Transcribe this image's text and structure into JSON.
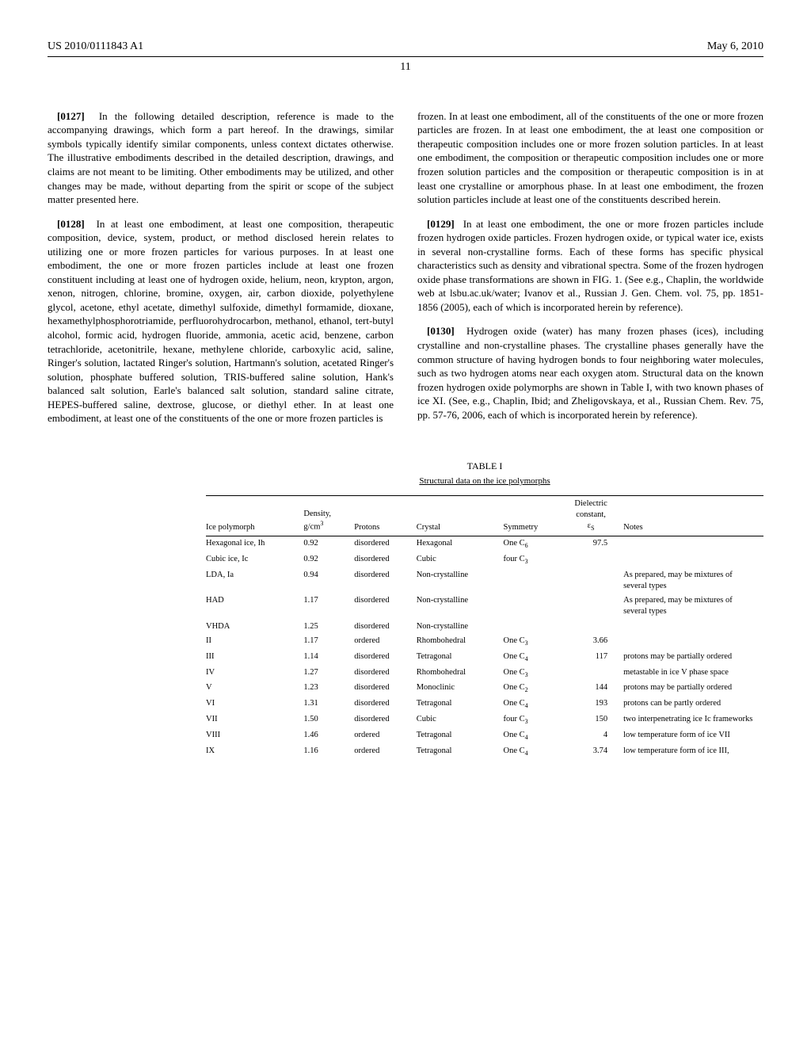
{
  "header": {
    "pub_number": "US 2010/0111843 A1",
    "pub_date": "May 6, 2010",
    "page": "11"
  },
  "left_col": {
    "p127_num": "[0127]",
    "p127": "In the following detailed description, reference is made to the accompanying drawings, which form a part hereof. In the drawings, similar symbols typically identify similar components, unless context dictates otherwise. The illustrative embodiments described in the detailed description, drawings, and claims are not meant to be limiting. Other embodiments may be utilized, and other changes may be made, without departing from the spirit or scope of the subject matter presented here.",
    "p128_num": "[0128]",
    "p128": "In at least one embodiment, at least one composition, therapeutic composition, device, system, product, or method disclosed herein relates to utilizing one or more frozen particles for various purposes. In at least one embodiment, the one or more frozen particles include at least one frozen constituent including at least one of hydrogen oxide, helium, neon, krypton, argon, xenon, nitrogen, chlorine, bromine, oxygen, air, carbon dioxide, polyethylene glycol, acetone, ethyl acetate, dimethyl sulfoxide, dimethyl formamide, dioxane, hexamethylphosphorotriamide, perfluorohydrocarbon, methanol, ethanol, tert-butyl alcohol, formic acid, hydrogen fluoride, ammonia, acetic acid, benzene, carbon tetrachloride, acetonitrile, hexane, methylene chloride, carboxylic acid, saline, Ringer's solution, lactated Ringer's solution, Hartmann's solution, acetated Ringer's solution, phosphate buffered solution, TRIS-buffered saline solution, Hank's balanced salt solution, Earle's balanced salt solution, standard saline citrate, HEPES-buffered saline, dextrose, glucose, or diethyl ether. In at least one embodiment, at least one of the constituents of the one or more frozen particles is"
  },
  "right_col": {
    "p128_cont": "frozen. In at least one embodiment, all of the constituents of the one or more frozen particles are frozen. In at least one embodiment, the at least one composition or therapeutic composition includes one or more frozen solution particles. In at least one embodiment, the composition or therapeutic composition includes one or more frozen solution particles and the composition or therapeutic composition is in at least one crystalline or amorphous phase. In at least one embodiment, the frozen solution particles include at least one of the constituents described herein.",
    "p129_num": "[0129]",
    "p129": "In at least one embodiment, the one or more frozen particles include frozen hydrogen oxide particles. Frozen hydrogen oxide, or typical water ice, exists in several non-crystalline forms. Each of these forms has specific physical characteristics such as density and vibrational spectra. Some of the frozen hydrogen oxide phase transformations are shown in FIG. 1. (See e.g., Chaplin, the worldwide web at lsbu.ac.uk/water; Ivanov et al., Russian J. Gen. Chem. vol. 75, pp. 1851-1856 (2005), each of which is incorporated herein by reference).",
    "p130_num": "[0130]",
    "p130": "Hydrogen oxide (water) has many frozen phases (ices), including crystalline and non-crystalline phases. The crystalline phases generally have the common structure of having hydrogen bonds to four neighboring water molecules, such as two hydrogen atoms near each oxygen atom. Structural data on the known frozen hydrogen oxide polymorphs are shown in Table I, with two known phases of ice XI. (See, e.g., Chaplin, Ibid; and Zheligovskaya, et al., Russian Chem. Rev. 75, pp. 57-76, 2006, each of which is incorporated herein by reference)."
  },
  "table": {
    "label": "TABLE I",
    "caption": "Structural data on the ice polymorphs",
    "headers": {
      "c1": "Ice polymorph",
      "c2_line1": "Density,",
      "c2_line2": "g/cm",
      "c3": "Protons",
      "c4": "Crystal",
      "c5": "Symmetry",
      "c6_line1": "Dielectric",
      "c6_line2": "constant,",
      "c6_line3": "ε",
      "c7": "Notes"
    },
    "rows": [
      {
        "poly": "Hexagonal ice, Ih",
        "dens": "0.92",
        "prot": "disordered",
        "cryst": "Hexagonal",
        "sym_pre": "One C",
        "sym_sub": "6",
        "diel": "97.5",
        "notes": ""
      },
      {
        "poly": "Cubic ice, Ic",
        "dens": "0.92",
        "prot": "disordered",
        "cryst": "Cubic",
        "sym_pre": "four C",
        "sym_sub": "3",
        "diel": "",
        "notes": ""
      },
      {
        "poly": "LDA, Ia",
        "dens": "0.94",
        "prot": "disordered",
        "cryst": "Non-crystalline",
        "sym_pre": "",
        "sym_sub": "",
        "diel": "",
        "notes": "As prepared, may be mixtures of several types"
      },
      {
        "poly": "HAD",
        "dens": "1.17",
        "prot": "disordered",
        "cryst": "Non-crystalline",
        "sym_pre": "",
        "sym_sub": "",
        "diel": "",
        "notes": "As prepared, may be mixtures of several types"
      },
      {
        "poly": "VHDA",
        "dens": "1.25",
        "prot": "disordered",
        "cryst": "Non-crystalline",
        "sym_pre": "",
        "sym_sub": "",
        "diel": "",
        "notes": ""
      },
      {
        "poly": "II",
        "dens": "1.17",
        "prot": "ordered",
        "cryst": "Rhombohedral",
        "sym_pre": "One C",
        "sym_sub": "3",
        "diel": "3.66",
        "notes": ""
      },
      {
        "poly": "III",
        "dens": "1.14",
        "prot": "disordered",
        "cryst": "Tetragonal",
        "sym_pre": "One C",
        "sym_sub": "4",
        "diel": "117",
        "notes": "protons may be partially ordered"
      },
      {
        "poly": "IV",
        "dens": "1.27",
        "prot": "disordered",
        "cryst": "Rhombohedral",
        "sym_pre": "One C",
        "sym_sub": "3",
        "diel": "",
        "notes": "metastable in ice V phase space"
      },
      {
        "poly": "V",
        "dens": "1.23",
        "prot": "disordered",
        "cryst": "Monoclinic",
        "sym_pre": "One C",
        "sym_sub": "2",
        "diel": "144",
        "notes": "protons may be partially ordered"
      },
      {
        "poly": "VI",
        "dens": "1.31",
        "prot": "disordered",
        "cryst": "Tetragonal",
        "sym_pre": "One C",
        "sym_sub": "4",
        "diel": "193",
        "notes": "protons can be partly ordered"
      },
      {
        "poly": "VII",
        "dens": "1.50",
        "prot": "disordered",
        "cryst": "Cubic",
        "sym_pre": "four C",
        "sym_sub": "3",
        "diel": "150",
        "notes": "two interpenetrating ice Ic frameworks"
      },
      {
        "poly": "VIII",
        "dens": "1.46",
        "prot": "ordered",
        "cryst": "Tetragonal",
        "sym_pre": "One C",
        "sym_sub": "4",
        "diel": "4",
        "notes": "low temperature form of ice VII"
      },
      {
        "poly": "IX",
        "dens": "1.16",
        "prot": "ordered",
        "cryst": "Tetragonal",
        "sym_pre": "One C",
        "sym_sub": "4",
        "diel": "3.74",
        "notes": "low temperature form of ice III,"
      }
    ]
  }
}
